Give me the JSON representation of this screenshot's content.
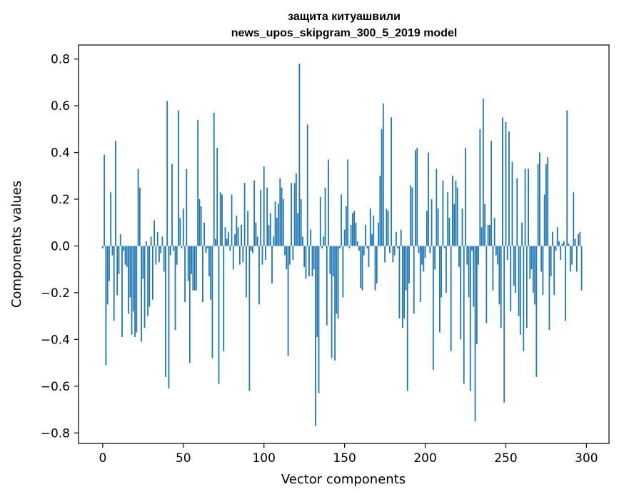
{
  "chart_data": {
    "type": "bar",
    "title_line1": "защита китуашвили",
    "title_line2": "news_upos_skipgram_300_5_2019 model",
    "xlabel": "Vector components",
    "ylabel": "Components values",
    "xlim": [
      -15,
      314
    ],
    "ylim": [
      -0.845,
      0.86
    ],
    "xticks": [
      0,
      50,
      100,
      150,
      200,
      250,
      300
    ],
    "xtick_labels": [
      "0",
      "50",
      "100",
      "150",
      "200",
      "250",
      "300"
    ],
    "yticks": [
      -0.8,
      -0.6,
      -0.4,
      -0.2,
      0.0,
      0.2,
      0.4,
      0.6,
      0.8
    ],
    "ytick_labels": [
      "−0.8",
      "−0.6",
      "−0.4",
      "−0.2",
      "0.0",
      "0.2",
      "0.4",
      "0.6",
      "0.8"
    ],
    "bar_color": "#1f77b4",
    "values": [
      -0.01,
      0.39,
      -0.51,
      -0.25,
      -0.15,
      0.23,
      -0.04,
      -0.32,
      0.45,
      -0.21,
      -0.12,
      0.05,
      -0.39,
      -0.02,
      -0.08,
      -0.09,
      -0.29,
      -0.22,
      -0.38,
      -0.28,
      -0.39,
      -0.37,
      0.33,
      0.25,
      -0.41,
      -0.14,
      -0.35,
      0.02,
      -0.3,
      -0.26,
      0.04,
      -0.23,
      0.11,
      -0.08,
      0.06,
      -0.07,
      -0.03,
      0.04,
      -0.11,
      -0.56,
      0.62,
      -0.61,
      -0.04,
      0.35,
      -0.02,
      -0.36,
      -0.08,
      0.58,
      0.12,
      -0.01,
      0.16,
      -0.24,
      0.33,
      -0.15,
      -0.5,
      -0.12,
      -0.19,
      -0.19,
      -0.19,
      0.54,
      0.2,
      0.17,
      -0.24,
      0.1,
      -0.03,
      -0.01,
      -0.13,
      -0.23,
      -0.48,
      0.57,
      0.03,
      0.42,
      -0.59,
      0.23,
      0.22,
      -0.45,
      0.08,
      0.03,
      0.06,
      -0.02,
      0.22,
      -0.1,
      0.05,
      0.13,
      0.08,
      -0.08,
      0.09,
      -0.07,
      0.27,
      -0.22,
      0.15,
      -0.62,
      -0.02,
      -0.03,
      0.28,
      0.1,
      0.04,
      -0.25,
      0.24,
      -0.08,
      0.34,
      -0.06,
      0.25,
      0.09,
      0.14,
      -0.16,
      0.04,
      0.19,
      0.12,
      0.18,
      0.29,
      0.25,
      0.2,
      -0.04,
      -0.1,
      -0.47,
      -0.08,
      0.27,
      -0.06,
      0.27,
      0.31,
      0.14,
      0.78,
      0.2,
      0.04,
      -0.09,
      -0.14,
      0.52,
      -0.13,
      0.07,
      -0.13,
      -0.1,
      -0.77,
      -0.39,
      -0.63,
      0.21,
      -0.01,
      0.04,
      0.25,
      -0.34,
      0.37,
      -0.12,
      -0.48,
      -0.13,
      -0.49,
      -0.29,
      -0.31,
      -0.01,
      0.22,
      -0.22,
      0.07,
      0.17,
      0.37,
      -0.01,
      0.09,
      0.14,
      0.15,
      0.1,
      0.02,
      -0.02,
      -0.18,
      -0.19,
      -0.04,
      0.09,
      -0.01,
      -0.09,
      0.16,
      0.05,
      0.13,
      -0.19,
      -0.16,
      0.1,
      0.3,
      0.5,
      0.61,
      -0.07,
      0.16,
      0.15,
      -0.03,
      0.55,
      -0.07,
      -0.04,
      0.06,
      -0.01,
      -0.31,
      0.07,
      -0.35,
      -0.31,
      -0.19,
      -0.62,
      -0.16,
      0.26,
      0.25,
      -0.29,
      0.41,
      0.42,
      -0.03,
      -0.24,
      -0.08,
      -0.11,
      -0.05,
      0.15,
      0.4,
      -0.03,
      0.2,
      -0.53,
      -0.1,
      0.33,
      0.16,
      -0.37,
      -0.22,
      0.28,
      -0.01,
      -0.2,
      0.23,
      0.12,
      -0.45,
      0.3,
      0.18,
      0.28,
      0.25,
      -0.09,
      -0.4,
      0.16,
      -0.59,
      0.42,
      -0.08,
      -0.22,
      -0.62,
      -0.02,
      -0.26,
      -0.75,
      -0.42,
      -0.08,
      0.5,
      0.08,
      0.63,
      0.18,
      -0.33,
      0.09,
      0.09,
      0.45,
      -0.19,
      0.12,
      -0.04,
      -0.08,
      -0.25,
      -0.35,
      0.55,
      -0.67,
      0.53,
      -0.06,
      0.49,
      -0.28,
      0.36,
      -0.17,
      -0.2,
      0.29,
      -0.3,
      -0.38,
      0.1,
      -0.45,
      0.33,
      -0.35,
      0.33,
      -0.14,
      -0.1,
      -0.2,
      -0.25,
      -0.56,
      0.35,
      0.4,
      -0.11,
      -0.21,
      0.22,
      0.35,
      0.38,
      -0.36,
      -0.13,
      0.06,
      -0.21,
      -0.02,
      0.08,
      0.02,
      -0.06,
      0.01,
      0.02,
      -0.32,
      0.58,
      0.01,
      -0.11,
      -0.08,
      0.23,
      0.03,
      -0.11,
      0.05,
      0.06,
      -0.19
    ]
  }
}
